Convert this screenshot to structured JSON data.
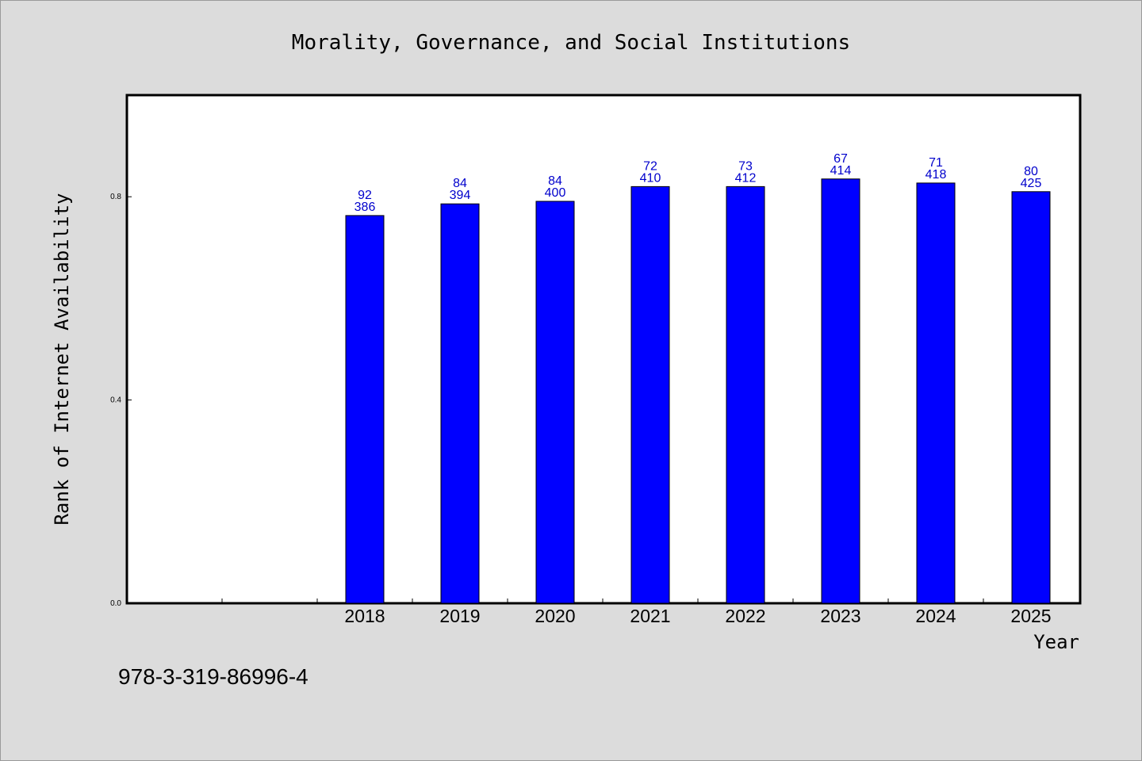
{
  "chart_data": {
    "type": "bar",
    "title": "Morality, Governance, and Social Institutions",
    "xlabel": "Year",
    "ylabel": "Rank of Internet Availability",
    "categories": [
      "2018",
      "2019",
      "2020",
      "2021",
      "2022",
      "2023",
      "2024",
      "2025"
    ],
    "values": [
      0.763,
      0.786,
      0.791,
      0.82,
      0.82,
      0.835,
      0.827,
      0.81
    ],
    "label_top": [
      "92",
      "84",
      "84",
      "72",
      "73",
      "67",
      "71",
      "80"
    ],
    "label_bottom": [
      "386",
      "394",
      "400",
      "410",
      "412",
      "414",
      "418",
      "425"
    ],
    "ylim": [
      0,
      1
    ],
    "yticks": [
      0.0,
      0.4,
      0.8
    ],
    "ytick_labels": [
      "0.0",
      "0.4",
      "0.8"
    ],
    "empty_leading_slots": 2,
    "bar_color": "#0000ff",
    "label_color": "#0000cc",
    "background_color": "#dcdcdc",
    "plot_background": "#ffffff",
    "grid": false,
    "legend": "none"
  },
  "footer": {
    "isbn": "978-3-319-86996-4"
  }
}
